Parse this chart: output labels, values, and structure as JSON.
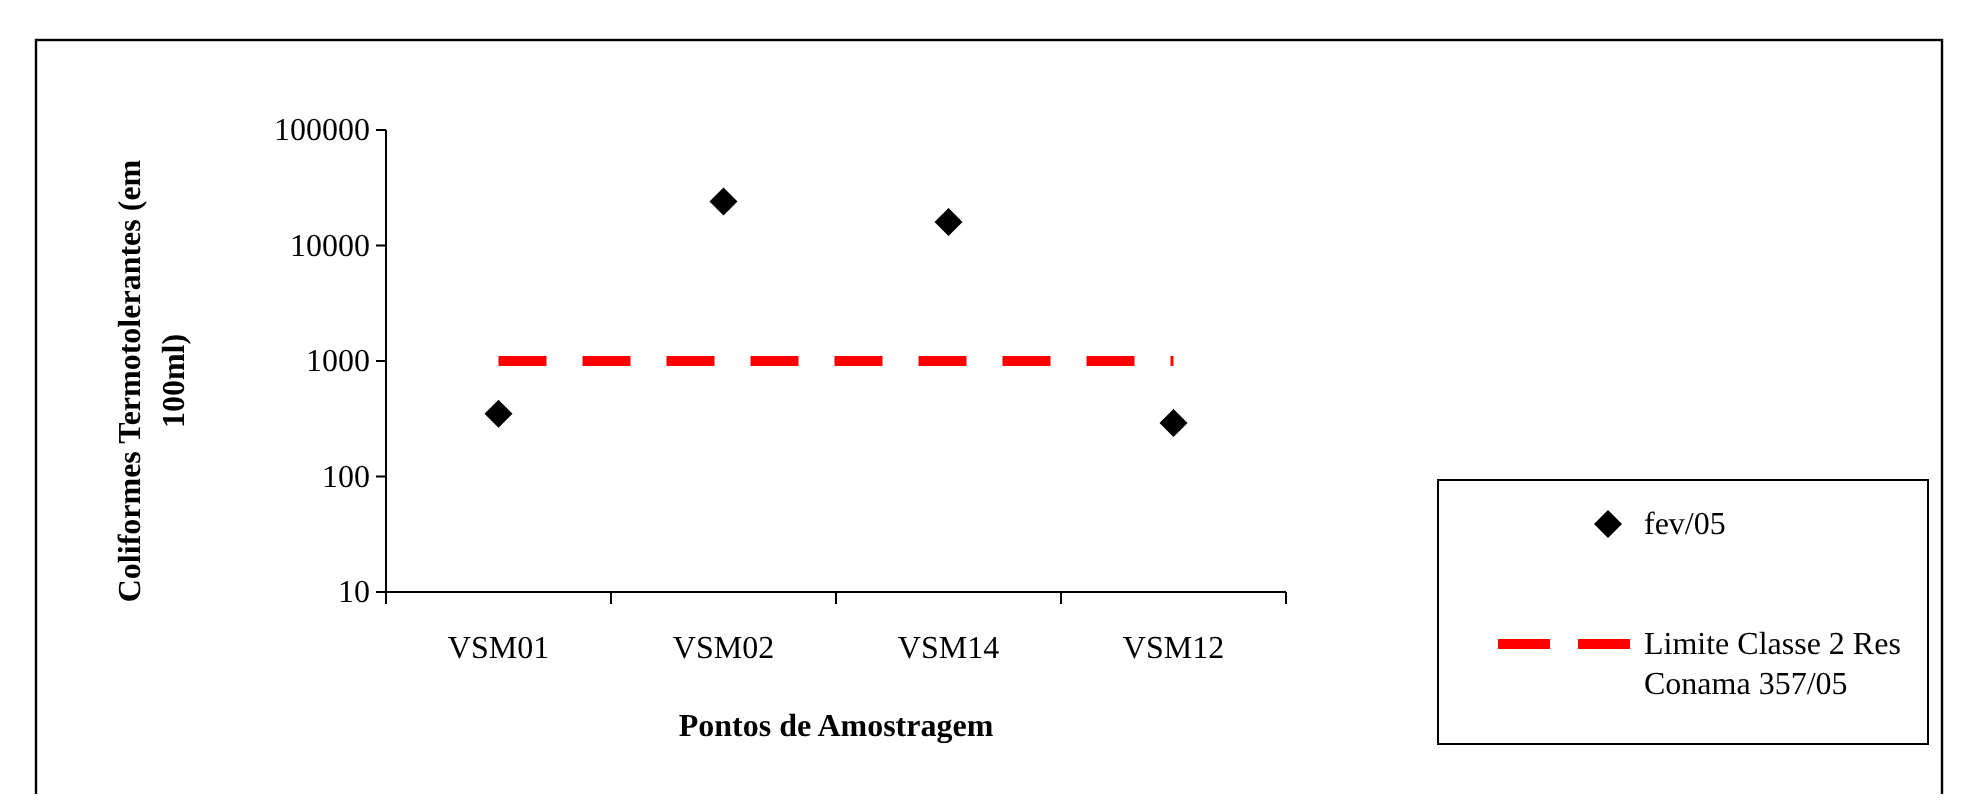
{
  "chart_data": {
    "type": "scatter",
    "xlabel": "Pontos de Amostragem",
    "ylabel": "Coliformes Termotolerantes (em 100ml)",
    "categories": [
      "VSM01",
      "VSM02",
      "VSM14",
      "VSM12"
    ],
    "series": [
      {
        "name": "fev/05",
        "color": "#000000",
        "marker": "diamond",
        "values": [
          350,
          24000,
          16000,
          290
        ]
      },
      {
        "name": "Limite Classe 2 Res Conama 357/05",
        "type": "line",
        "color": "#ff0000",
        "marker": "none",
        "line_style": "dashed",
        "values": [
          1000,
          1000,
          1000,
          1000
        ]
      }
    ],
    "log": true,
    "ylim": [
      10,
      100000
    ],
    "yticks": [
      10,
      100,
      1000,
      10000,
      100000
    ],
    "grid": false,
    "legend": "right"
  }
}
